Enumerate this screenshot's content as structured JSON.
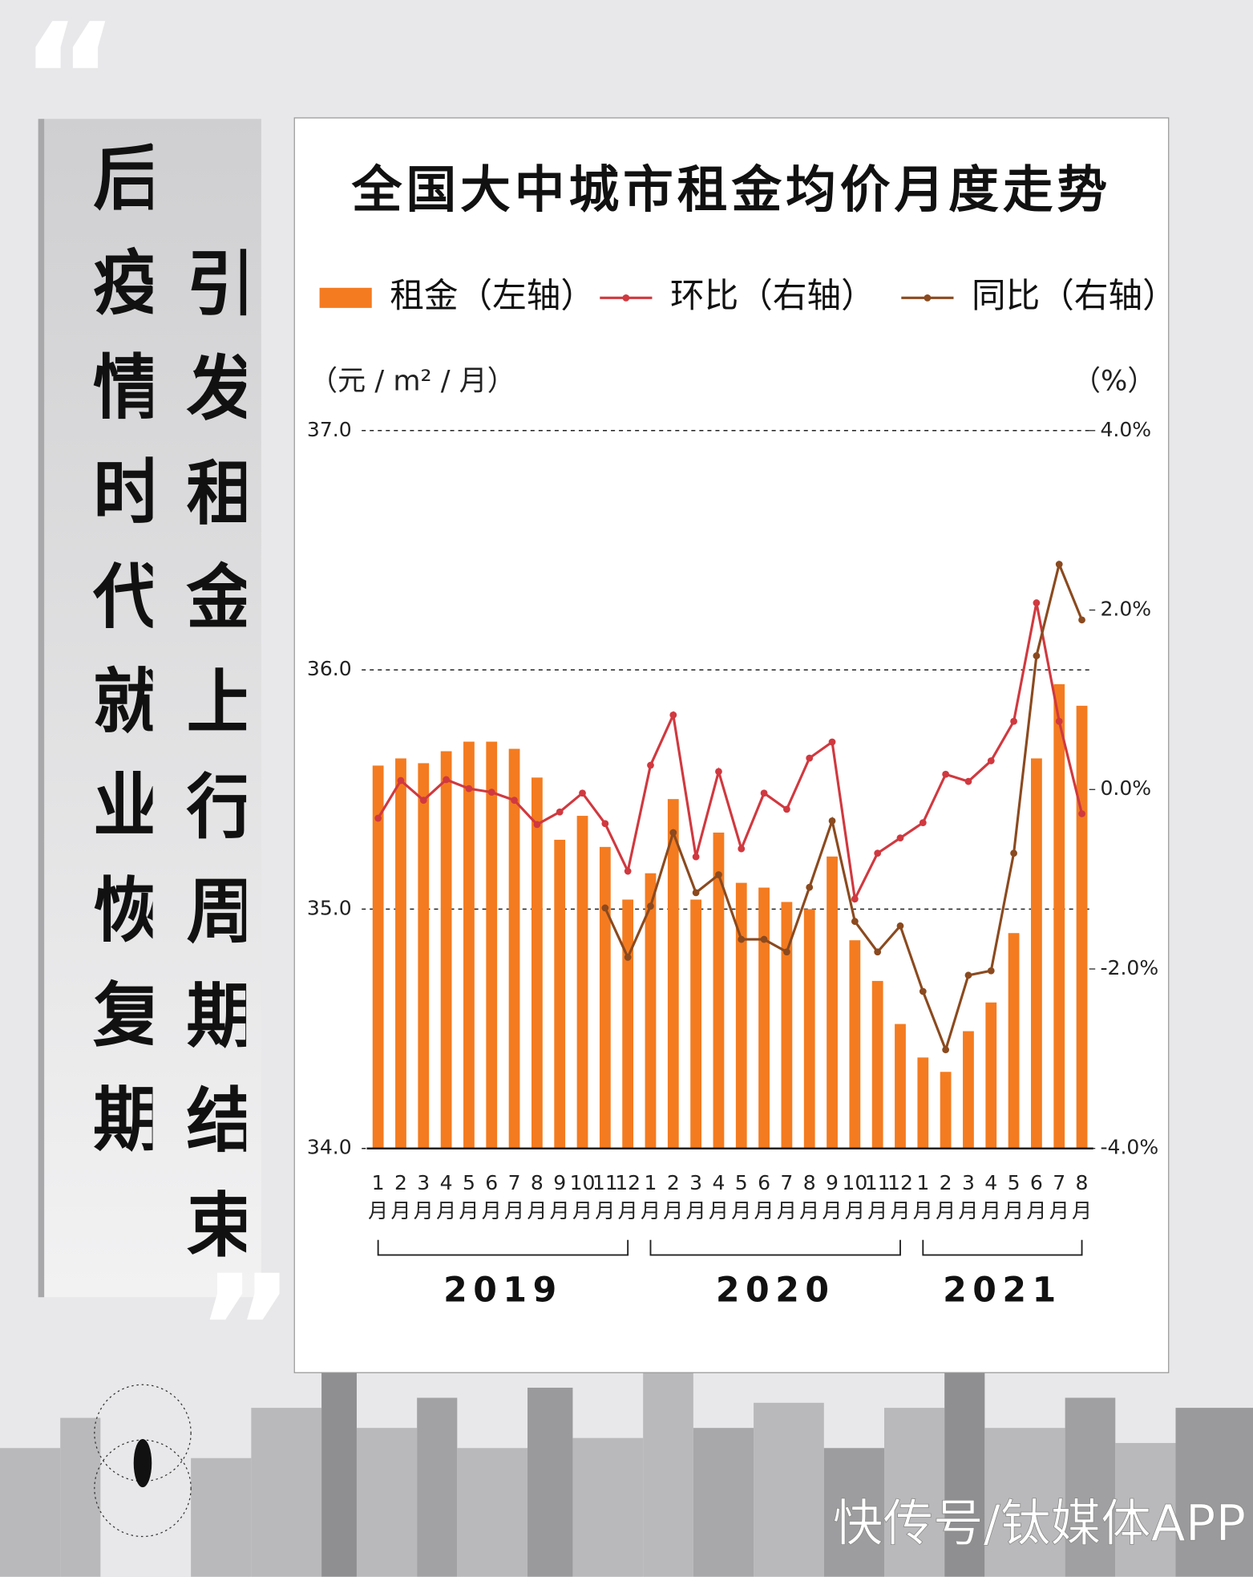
{
  "headline": {
    "open_quote": "“",
    "close_quote": "”",
    "columns": [
      "后疫情时代就业恢复期",
      "引发租金上行周期结束"
    ]
  },
  "chart_data": {
    "type": "bar",
    "title": "全国大中城市租金均价月度走势",
    "y_label": "（元 / m² / 月）",
    "y2_label": "（%）",
    "categories": [
      "1月",
      "2月",
      "3月",
      "4月",
      "5月",
      "6月",
      "7月",
      "8月",
      "9月",
      "10月",
      "11月",
      "12月",
      "1月",
      "2月",
      "3月",
      "4月",
      "5月",
      "6月",
      "7月",
      "8月",
      "9月",
      "10月",
      "11月",
      "12月",
      "1月",
      "2月",
      "3月",
      "4月",
      "5月",
      "6月",
      "7月",
      "8月"
    ],
    "x_groups": [
      {
        "label": "2019",
        "count": 12
      },
      {
        "label": "2020",
        "count": 12
      },
      {
        "label": "2021",
        "count": 8
      }
    ],
    "series": [
      {
        "name": "租金（左轴）",
        "type": "bar",
        "color": "#f47b20",
        "values": [
          35.6,
          35.63,
          35.61,
          35.66,
          35.7,
          35.7,
          35.67,
          35.55,
          35.29,
          35.39,
          35.26,
          35.04,
          35.15,
          35.46,
          35.04,
          35.32,
          35.11,
          35.09,
          35.03,
          35.0,
          35.22,
          34.87,
          34.7,
          34.52,
          34.38,
          34.32,
          34.49,
          34.61,
          34.9,
          35.63,
          35.94,
          35.85
        ]
      },
      {
        "name": "环比（右轴）",
        "type": "line",
        "axis": "y2",
        "color": "#d0393f",
        "values": [
          -0.32,
          0.1,
          -0.12,
          0.11,
          0.01,
          -0.03,
          -0.12,
          -0.39,
          -0.25,
          -0.04,
          -0.38,
          -0.91,
          0.27,
          0.83,
          -0.75,
          0.2,
          -0.66,
          -0.04,
          -0.22,
          0.35,
          0.53,
          -1.22,
          -0.71,
          -0.54,
          -0.37,
          0.17,
          0.09,
          0.32,
          0.76,
          2.08,
          0.76,
          -0.27
        ]
      },
      {
        "name": "同比（右轴）",
        "type": "line",
        "axis": "y2",
        "color": "#8b4a1f",
        "values": [
          null,
          null,
          null,
          null,
          null,
          null,
          null,
          null,
          null,
          null,
          -1.32,
          -1.87,
          -1.3,
          -0.48,
          -1.15,
          -0.95,
          -1.67,
          -1.67,
          -1.81,
          -1.09,
          -0.35,
          -1.47,
          -1.81,
          -1.52,
          -2.25,
          -2.9,
          -2.07,
          -2.02,
          -0.71,
          1.49,
          2.51,
          1.89
        ]
      }
    ],
    "ylim": [
      34,
      37
    ],
    "yticks": [
      {
        "value": 34,
        "label": "34.0"
      },
      {
        "value": 35,
        "label": "35.0"
      },
      {
        "value": 36,
        "label": "36.0"
      },
      {
        "value": 37,
        "label": "37.0"
      }
    ],
    "y2lim": [
      -4,
      4
    ],
    "y2ticks": [
      {
        "value": -4,
        "label": "-4.0%"
      },
      {
        "value": -2,
        "label": "-2.0%"
      },
      {
        "value": 0,
        "label": "0.0%"
      },
      {
        "value": 2,
        "label": "2.0%"
      },
      {
        "value": 4,
        "label": "4.0%"
      }
    ],
    "grid": true
  },
  "footer": "快传号/钛媒体APP"
}
